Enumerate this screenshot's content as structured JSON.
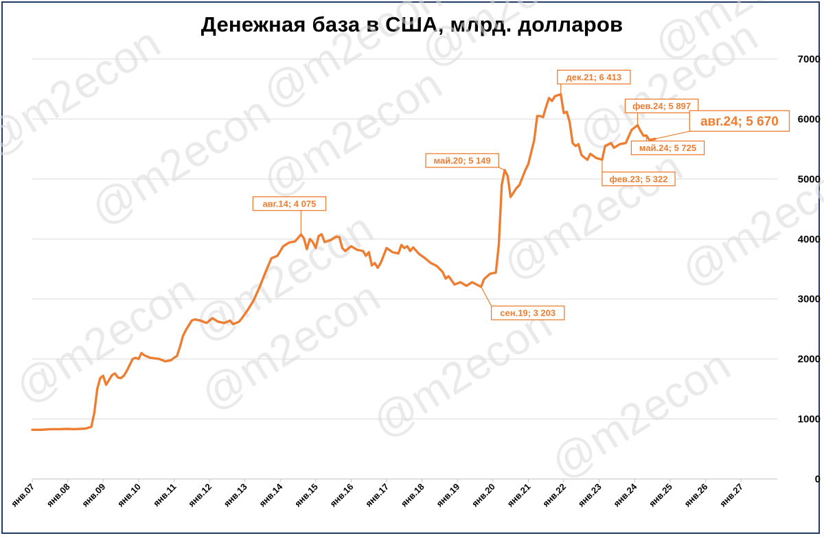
{
  "chart_data": {
    "type": "line",
    "title": "Денежная база в США, млрд. долларов",
    "ylim": [
      0,
      7000
    ],
    "yticks": [
      "0",
      "1000",
      "2000",
      "3000",
      "4000",
      "5000",
      "6000",
      "7000"
    ],
    "x_tick_labels": [
      "янв.07",
      "янв.08",
      "янв.09",
      "янв.10",
      "янв.11",
      "янв.12",
      "янв.13",
      "янв.14",
      "янв.15",
      "янв.16",
      "янв.17",
      "янв.18",
      "янв.19",
      "янв.20",
      "янв.21",
      "янв.22",
      "янв.23",
      "янв.24",
      "янв.25",
      "янв.26",
      "янв.27"
    ],
    "x_range_years": [
      2007,
      2027.5
    ],
    "grid": "horizontal",
    "line_color": "#ed7d31",
    "series": [
      {
        "points": [
          [
            "2007-01",
            820
          ],
          [
            "2007-04",
            820
          ],
          [
            "2007-07",
            830
          ],
          [
            "2007-10",
            830
          ],
          [
            "2008-01",
            835
          ],
          [
            "2008-03",
            830
          ],
          [
            "2008-05",
            835
          ],
          [
            "2008-07",
            840
          ],
          [
            "2008-09",
            870
          ],
          [
            "2008-10",
            1100
          ],
          [
            "2008-11",
            1500
          ],
          [
            "2008-12",
            1680
          ],
          [
            "2009-01",
            1720
          ],
          [
            "2009-02",
            1570
          ],
          [
            "2009-03",
            1650
          ],
          [
            "2009-04",
            1730
          ],
          [
            "2009-05",
            1760
          ],
          [
            "2009-06",
            1690
          ],
          [
            "2009-07",
            1680
          ],
          [
            "2009-08",
            1720
          ],
          [
            "2009-09",
            1800
          ],
          [
            "2009-10",
            1900
          ],
          [
            "2009-11",
            2000
          ],
          [
            "2009-12",
            2020
          ],
          [
            "2010-01",
            2000
          ],
          [
            "2010-02",
            2100
          ],
          [
            "2010-03",
            2060
          ],
          [
            "2010-05",
            2020
          ],
          [
            "2010-08",
            2000
          ],
          [
            "2010-10",
            1960
          ],
          [
            "2010-12",
            1980
          ],
          [
            "2011-01",
            2020
          ],
          [
            "2011-02",
            2050
          ],
          [
            "2011-03",
            2200
          ],
          [
            "2011-04",
            2380
          ],
          [
            "2011-05",
            2480
          ],
          [
            "2011-06",
            2560
          ],
          [
            "2011-07",
            2640
          ],
          [
            "2011-08",
            2660
          ],
          [
            "2011-10",
            2640
          ],
          [
            "2011-12",
            2600
          ],
          [
            "2012-02",
            2680
          ],
          [
            "2012-04",
            2620
          ],
          [
            "2012-06",
            2600
          ],
          [
            "2012-08",
            2640
          ],
          [
            "2012-09",
            2580
          ],
          [
            "2012-11",
            2620
          ],
          [
            "2012-12",
            2680
          ],
          [
            "2013-02",
            2820
          ],
          [
            "2013-04",
            2980
          ],
          [
            "2013-06",
            3200
          ],
          [
            "2013-08",
            3450
          ],
          [
            "2013-10",
            3680
          ],
          [
            "2013-12",
            3720
          ],
          [
            "2014-02",
            3880
          ],
          [
            "2014-04",
            3940
          ],
          [
            "2014-06",
            3960
          ],
          [
            "2014-08",
            4075
          ],
          [
            "2014-09",
            4010
          ],
          [
            "2014-10",
            3830
          ],
          [
            "2014-11",
            4000
          ],
          [
            "2014-12",
            3950
          ],
          [
            "2015-01",
            3850
          ],
          [
            "2015-02",
            4050
          ],
          [
            "2015-03",
            4080
          ],
          [
            "2015-04",
            3950
          ],
          [
            "2015-06",
            3980
          ],
          [
            "2015-08",
            4040
          ],
          [
            "2015-09",
            4030
          ],
          [
            "2015-10",
            3850
          ],
          [
            "2015-11",
            3800
          ],
          [
            "2016-01",
            3880
          ],
          [
            "2016-03",
            3820
          ],
          [
            "2016-05",
            3800
          ],
          [
            "2016-06",
            3720
          ],
          [
            "2016-07",
            3780
          ],
          [
            "2016-08",
            3560
          ],
          [
            "2016-09",
            3600
          ],
          [
            "2016-10",
            3520
          ],
          [
            "2016-11",
            3600
          ],
          [
            "2017-01",
            3850
          ],
          [
            "2017-03",
            3780
          ],
          [
            "2017-05",
            3760
          ],
          [
            "2017-06",
            3900
          ],
          [
            "2017-07",
            3850
          ],
          [
            "2017-08",
            3880
          ],
          [
            "2017-09",
            3800
          ],
          [
            "2017-10",
            3860
          ],
          [
            "2017-12",
            3750
          ],
          [
            "2018-02",
            3680
          ],
          [
            "2018-04",
            3600
          ],
          [
            "2018-06",
            3550
          ],
          [
            "2018-08",
            3450
          ],
          [
            "2018-09",
            3340
          ],
          [
            "2018-10",
            3380
          ],
          [
            "2018-12",
            3240
          ],
          [
            "2019-02",
            3280
          ],
          [
            "2019-04",
            3220
          ],
          [
            "2019-06",
            3280
          ],
          [
            "2019-09",
            3203
          ],
          [
            "2019-10",
            3330
          ],
          [
            "2019-12",
            3420
          ],
          [
            "2020-02",
            3440
          ],
          [
            "2020-03",
            3900
          ],
          [
            "2020-04",
            4900
          ],
          [
            "2020-05",
            5149
          ],
          [
            "2020-06",
            5050
          ],
          [
            "2020-07",
            4700
          ],
          [
            "2020-09",
            4850
          ],
          [
            "2020-10",
            4900
          ],
          [
            "2020-12",
            5150
          ],
          [
            "2021-01",
            5250
          ],
          [
            "2021-02",
            5450
          ],
          [
            "2021-03",
            5650
          ],
          [
            "2021-04",
            6050
          ],
          [
            "2021-05",
            6050
          ],
          [
            "2021-06",
            6030
          ],
          [
            "2021-07",
            6200
          ],
          [
            "2021-08",
            6350
          ],
          [
            "2021-09",
            6300
          ],
          [
            "2021-10",
            6380
          ],
          [
            "2021-12",
            6413
          ],
          [
            "2022-01",
            6100
          ],
          [
            "2022-02",
            6120
          ],
          [
            "2022-03",
            5950
          ],
          [
            "2022-04",
            5600
          ],
          [
            "2022-05",
            5550
          ],
          [
            "2022-06",
            5580
          ],
          [
            "2022-07",
            5400
          ],
          [
            "2022-09",
            5320
          ],
          [
            "2022-10",
            5420
          ],
          [
            "2022-12",
            5350
          ],
          [
            "2023-02",
            5322
          ],
          [
            "2023-03",
            5550
          ],
          [
            "2023-05",
            5600
          ],
          [
            "2023-06",
            5520
          ],
          [
            "2023-08",
            5580
          ],
          [
            "2023-10",
            5600
          ],
          [
            "2023-12",
            5820
          ],
          [
            "2024-02",
            5897
          ],
          [
            "2024-03",
            5800
          ],
          [
            "2024-04",
            5720
          ],
          [
            "2024-05",
            5725
          ],
          [
            "2024-06",
            5650
          ],
          [
            "2024-08",
            5670
          ]
        ]
      }
    ],
    "annotations": [
      {
        "text": "авг.14; 4 075",
        "x": "2014-08",
        "y": 4075,
        "size": "small"
      },
      {
        "text": "сен.19; 3 203",
        "x": "2019-09",
        "y": 3203,
        "size": "small"
      },
      {
        "text": "май.20; 5 149",
        "x": "2020-05",
        "y": 5149,
        "size": "small"
      },
      {
        "text": "дек.21; 6 413",
        "x": "2021-12",
        "y": 6413,
        "size": "small"
      },
      {
        "text": "фев.23; 5 322",
        "x": "2023-02",
        "y": 5322,
        "size": "small"
      },
      {
        "text": "фев.24; 5 897",
        "x": "2024-02",
        "y": 5897,
        "size": "small"
      },
      {
        "text": "май.24; 5 725",
        "x": "2024-05",
        "y": 5725,
        "size": "small"
      },
      {
        "text": "авг.24; 5 670",
        "x": "2024-08",
        "y": 5670,
        "size": "big"
      }
    ],
    "watermark": "@m2econ"
  }
}
